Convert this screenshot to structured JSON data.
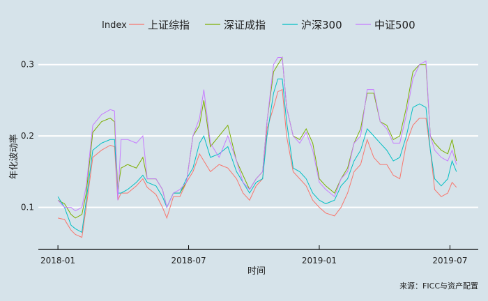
{
  "chart_data": {
    "type": "line",
    "title": "",
    "xlabel": "时间",
    "ylabel": "年化波动率",
    "caption": "来源：FICC与资产配置",
    "legend": {
      "title": "Index",
      "position": "top"
    },
    "x_unit": "months since 2018-01",
    "x_ticks": [
      {
        "value": 0,
        "label": "2018-01"
      },
      {
        "value": 6,
        "label": "2018-07"
      },
      {
        "value": 12,
        "label": "2019-01"
      },
      {
        "value": 18,
        "label": "2019-07"
      }
    ],
    "y_ticks": [
      {
        "value": 0.1,
        "label": "0.1"
      },
      {
        "value": 0.2,
        "label": "0.2"
      },
      {
        "value": 0.3,
        "label": "0.3"
      }
    ],
    "xlim": [
      -0.9,
      19.3
    ],
    "ylim": [
      0.041,
      0.33
    ],
    "grid": true,
    "x": [
      0,
      0.3,
      0.6,
      0.8,
      1.1,
      1.3,
      1.6,
      2.0,
      2.4,
      2.6,
      2.75,
      2.9,
      3.2,
      3.6,
      3.9,
      4.1,
      4.5,
      4.8,
      5.0,
      5.3,
      5.6,
      5.9,
      6.2,
      6.5,
      6.7,
      7.0,
      7.4,
      7.8,
      8.2,
      8.5,
      8.8,
      9.1,
      9.4,
      9.6,
      9.9,
      10.1,
      10.3,
      10.5,
      10.8,
      11.1,
      11.4,
      11.7,
      12.0,
      12.3,
      12.7,
      13.0,
      13.3,
      13.6,
      13.9,
      14.2,
      14.5,
      14.8,
      15.1,
      15.4,
      15.7,
      16.0,
      16.3,
      16.6,
      16.9,
      17.1,
      17.3,
      17.6,
      17.9,
      18.1,
      18.3
    ],
    "series": [
      {
        "name": "上证综指",
        "color": "#f8766d",
        "values": [
          0.085,
          0.083,
          0.068,
          0.062,
          0.058,
          0.1,
          0.17,
          0.18,
          0.187,
          0.185,
          0.11,
          0.12,
          0.12,
          0.13,
          0.14,
          0.128,
          0.118,
          0.1,
          0.085,
          0.115,
          0.115,
          0.135,
          0.15,
          0.175,
          0.165,
          0.15,
          0.16,
          0.155,
          0.14,
          0.12,
          0.11,
          0.13,
          0.14,
          0.21,
          0.24,
          0.262,
          0.265,
          0.2,
          0.15,
          0.14,
          0.13,
          0.11,
          0.1,
          0.092,
          0.088,
          0.1,
          0.12,
          0.15,
          0.16,
          0.195,
          0.17,
          0.16,
          0.16,
          0.145,
          0.14,
          0.19,
          0.215,
          0.225,
          0.225,
          0.18,
          0.125,
          0.115,
          0.12,
          0.135,
          0.128
        ]
      },
      {
        "name": "深证成指",
        "color": "#7cae00",
        "values": [
          0.11,
          0.105,
          0.09,
          0.085,
          0.09,
          0.12,
          0.205,
          0.22,
          0.225,
          0.22,
          0.125,
          0.155,
          0.16,
          0.155,
          0.17,
          0.14,
          0.14,
          0.125,
          0.1,
          0.12,
          0.12,
          0.135,
          0.2,
          0.215,
          0.25,
          0.185,
          0.2,
          0.215,
          0.165,
          0.145,
          0.125,
          0.14,
          0.15,
          0.22,
          0.29,
          0.3,
          0.31,
          0.24,
          0.2,
          0.195,
          0.21,
          0.19,
          0.14,
          0.13,
          0.12,
          0.14,
          0.155,
          0.19,
          0.21,
          0.26,
          0.26,
          0.22,
          0.215,
          0.195,
          0.2,
          0.24,
          0.29,
          0.3,
          0.3,
          0.2,
          0.19,
          0.18,
          0.175,
          0.195,
          0.165
        ]
      },
      {
        "name": "沪深300",
        "color": "#00bfc4",
        "values": [
          0.115,
          0.1,
          0.075,
          0.07,
          0.065,
          0.11,
          0.18,
          0.19,
          0.195,
          0.195,
          0.12,
          0.12,
          0.125,
          0.135,
          0.145,
          0.135,
          0.13,
          0.115,
          0.1,
          0.12,
          0.12,
          0.14,
          0.155,
          0.19,
          0.2,
          0.17,
          0.175,
          0.185,
          0.15,
          0.135,
          0.12,
          0.135,
          0.14,
          0.2,
          0.26,
          0.28,
          0.28,
          0.22,
          0.155,
          0.15,
          0.14,
          0.12,
          0.11,
          0.105,
          0.11,
          0.13,
          0.14,
          0.165,
          0.18,
          0.21,
          0.2,
          0.19,
          0.18,
          0.165,
          0.17,
          0.2,
          0.24,
          0.245,
          0.24,
          0.18,
          0.14,
          0.13,
          0.14,
          0.165,
          0.15
        ]
      },
      {
        "name": "中证500",
        "color": "#c77cff",
        "values": [
          0.11,
          0.1,
          0.1,
          0.095,
          0.1,
          0.13,
          0.215,
          0.23,
          0.237,
          0.235,
          0.11,
          0.195,
          0.195,
          0.19,
          0.2,
          0.14,
          0.14,
          0.125,
          0.1,
          0.12,
          0.125,
          0.135,
          0.2,
          0.225,
          0.265,
          0.19,
          0.17,
          0.2,
          0.165,
          0.135,
          0.125,
          0.14,
          0.15,
          0.22,
          0.3,
          0.31,
          0.31,
          0.24,
          0.2,
          0.19,
          0.205,
          0.18,
          0.135,
          0.125,
          0.115,
          0.14,
          0.15,
          0.19,
          0.2,
          0.265,
          0.265,
          0.22,
          0.21,
          0.19,
          0.19,
          0.23,
          0.28,
          0.3,
          0.305,
          0.2,
          0.18,
          0.17,
          0.165,
          0.18,
          0.16
        ]
      }
    ]
  }
}
